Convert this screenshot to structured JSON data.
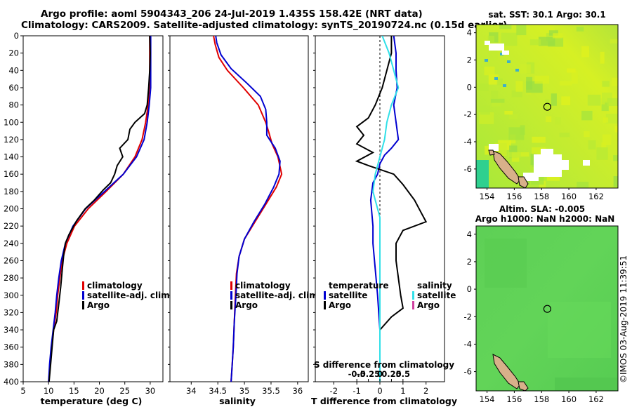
{
  "header": {
    "line1": "Argo profile: aoml 5904343_206 24-Jul-2019 1.435S 158.42E (NRT data)",
    "line2": "Climatology: CARS2009. Satellite-adjusted climatology: synTS_20190724.nc (0.15d earlier)"
  },
  "colors": {
    "climatology": "#e00000",
    "satellite": "#0000d0",
    "argo": "#000000",
    "satellite_salinity": "#30e0e8",
    "salinity_argo": "#d040a0"
  },
  "footer": {
    "credit": "©IMOS 03-Aug-2019 11:39:51"
  },
  "chart_data": [
    {
      "type": "line",
      "name": "temperature-profile",
      "xlabel": "temperature (deg C)",
      "xlim": [
        5,
        32.5
      ],
      "ylim": [
        400,
        0
      ],
      "xticks": [
        5,
        10,
        15,
        20,
        25,
        30
      ],
      "yticks": [
        0,
        20,
        40,
        60,
        80,
        100,
        120,
        140,
        160,
        180,
        200,
        220,
        240,
        260,
        280,
        300,
        320,
        340,
        360,
        380,
        400
      ],
      "legend": [
        "climatology",
        "satellite-adj. clim.",
        "Argo"
      ],
      "legend_position": "lower-right",
      "series": [
        {
          "name": "climatology",
          "color_key": "climatology",
          "points": [
            [
              29.9,
              0
            ],
            [
              29.9,
              20
            ],
            [
              29.9,
              40
            ],
            [
              29.8,
              60
            ],
            [
              29.6,
              80
            ],
            [
              29.1,
              100
            ],
            [
              28.4,
              120
            ],
            [
              27.0,
              140
            ],
            [
              24.7,
              160
            ],
            [
              21.3,
              180
            ],
            [
              17.8,
              200
            ],
            [
              15.1,
              220
            ],
            [
              13.6,
              240
            ],
            [
              12.7,
              260
            ],
            [
              12.2,
              280
            ],
            [
              11.8,
              300
            ],
            [
              11.5,
              320
            ],
            [
              11.0,
              340
            ],
            [
              10.6,
              360
            ],
            [
              10.3,
              380
            ],
            [
              10.0,
              400
            ]
          ]
        },
        {
          "name": "satellite-adj. clim.",
          "color_key": "satellite",
          "points": [
            [
              30.1,
              0
            ],
            [
              30.1,
              20
            ],
            [
              30.1,
              40
            ],
            [
              30.1,
              60
            ],
            [
              29.8,
              80
            ],
            [
              29.4,
              100
            ],
            [
              28.8,
              120
            ],
            [
              27.3,
              140
            ],
            [
              24.7,
              160
            ],
            [
              21.0,
              180
            ],
            [
              17.3,
              200
            ],
            [
              14.8,
              220
            ],
            [
              13.3,
              240
            ],
            [
              12.5,
              260
            ],
            [
              12.0,
              280
            ],
            [
              11.6,
              300
            ],
            [
              11.3,
              320
            ],
            [
              10.9,
              340
            ],
            [
              10.5,
              360
            ],
            [
              10.2,
              380
            ],
            [
              10.0,
              400
            ]
          ]
        },
        {
          "name": "Argo",
          "color_key": "argo",
          "points": [
            [
              29.9,
              0
            ],
            [
              30.0,
              20
            ],
            [
              29.9,
              40
            ],
            [
              29.7,
              60
            ],
            [
              29.4,
              80
            ],
            [
              28.9,
              90
            ],
            [
              27.0,
              100
            ],
            [
              26.0,
              108
            ],
            [
              25.6,
              120
            ],
            [
              24.0,
              130
            ],
            [
              24.6,
              140
            ],
            [
              23.5,
              150
            ],
            [
              23.0,
              160
            ],
            [
              22.2,
              170
            ],
            [
              20.8,
              178
            ],
            [
              19.0,
              190
            ],
            [
              17.2,
              200
            ],
            [
              15.5,
              214
            ],
            [
              14.0,
              230
            ],
            [
              13.3,
              240
            ],
            [
              13.0,
              252
            ],
            [
              12.7,
              270
            ],
            [
              12.4,
              290
            ],
            [
              12.0,
              310
            ],
            [
              11.6,
              330
            ],
            [
              11.0,
              340
            ],
            [
              10.7,
              360
            ],
            [
              10.4,
              380
            ],
            [
              10.1,
              400
            ]
          ]
        }
      ]
    },
    {
      "type": "line",
      "name": "salinity-profile",
      "xlabel": "salinity",
      "xlim": [
        33.6,
        36.2
      ],
      "ylim": [
        400,
        0
      ],
      "xticks": [
        34,
        34.5,
        35,
        35.5,
        36
      ],
      "legend": [
        "climatology",
        "satellite-adj. clim.",
        "Argo"
      ],
      "legend_position": "lower-right",
      "series": [
        {
          "name": "climatology",
          "color_key": "climatology",
          "points": [
            [
              34.42,
              0
            ],
            [
              34.45,
              10
            ],
            [
              34.52,
              25
            ],
            [
              34.68,
              40
            ],
            [
              34.98,
              60
            ],
            [
              35.26,
              80
            ],
            [
              35.4,
              100
            ],
            [
              35.45,
              110
            ],
            [
              35.52,
              125
            ],
            [
              35.63,
              140
            ],
            [
              35.7,
              160
            ],
            [
              35.6,
              175
            ],
            [
              35.4,
              195
            ],
            [
              35.2,
              215
            ],
            [
              35.0,
              235
            ],
            [
              34.9,
              255
            ],
            [
              34.85,
              275
            ],
            [
              34.83,
              300
            ],
            [
              34.81,
              330
            ],
            [
              34.79,
              360
            ],
            [
              34.77,
              380
            ],
            [
              34.75,
              400
            ]
          ]
        },
        {
          "name": "satellite-adj. clim.",
          "color_key": "satellite",
          "points": [
            [
              34.46,
              0
            ],
            [
              34.48,
              8
            ],
            [
              34.56,
              22
            ],
            [
              34.75,
              38
            ],
            [
              35.05,
              55
            ],
            [
              35.3,
              70
            ],
            [
              35.4,
              85
            ],
            [
              35.42,
              100
            ],
            [
              35.42,
              115
            ],
            [
              35.58,
              130
            ],
            [
              35.67,
              145
            ],
            [
              35.65,
              160
            ],
            [
              35.55,
              175
            ],
            [
              35.38,
              195
            ],
            [
              35.18,
              215
            ],
            [
              35.0,
              235
            ],
            [
              34.9,
              255
            ],
            [
              34.86,
              275
            ],
            [
              34.84,
              300
            ],
            [
              34.81,
              330
            ],
            [
              34.79,
              360
            ],
            [
              34.77,
              380
            ],
            [
              34.75,
              400
            ]
          ]
        }
      ]
    },
    {
      "type": "line",
      "name": "difference-profile",
      "xlabel": "T difference from climatology",
      "xlabel_top": "S difference from climatology",
      "xlim": [
        -2.8,
        2.8
      ],
      "ylim": [
        400,
        0
      ],
      "xticks": [
        -2,
        -1,
        0,
        1,
        2
      ],
      "xtick_labels": [
        "-2",
        "-1",
        "0",
        "1",
        "2"
      ],
      "xticks_top": [
        -1,
        -0.5,
        0,
        0.5,
        1
      ],
      "xtick_labels_top": [
        "-0.5",
        "-0.25",
        "0",
        "0.25",
        "0.5"
      ],
      "legend_left_title": "temperature",
      "legend_left": [
        "satellite",
        "Argo"
      ],
      "legend_right_title": "salinity",
      "legend_right": [
        "satellite",
        "Argo"
      ],
      "legend_position": "lower-center",
      "series": [
        {
          "name": "temperature satellite",
          "color_key": "satellite",
          "points": [
            [
              0.6,
              0
            ],
            [
              0.7,
              20
            ],
            [
              0.7,
              40
            ],
            [
              0.75,
              60
            ],
            [
              0.6,
              80
            ],
            [
              0.7,
              100
            ],
            [
              0.8,
              120
            ],
            [
              0.5,
              130
            ],
            [
              0.2,
              138
            ],
            [
              0.0,
              148
            ],
            [
              -0.1,
              160
            ],
            [
              -0.3,
              170
            ],
            [
              -0.4,
              190
            ],
            [
              -0.3,
              220
            ],
            [
              -0.3,
              240
            ],
            [
              -0.2,
              270
            ],
            [
              -0.1,
              300
            ],
            [
              0.0,
              340
            ],
            [
              0.0,
              400
            ]
          ]
        },
        {
          "name": "temperature Argo",
          "color_key": "argo",
          "points": [
            [
              0.5,
              0
            ],
            [
              0.5,
              20
            ],
            [
              0.3,
              40
            ],
            [
              0.1,
              60
            ],
            [
              -0.2,
              80
            ],
            [
              -0.5,
              95
            ],
            [
              -1.0,
              105
            ],
            [
              -0.7,
              115
            ],
            [
              -1.0,
              125
            ],
            [
              -0.3,
              135
            ],
            [
              -1.0,
              145
            ],
            [
              -0.5,
              150
            ],
            [
              0.6,
              160
            ],
            [
              1.0,
              172
            ],
            [
              1.5,
              190
            ],
            [
              1.8,
              205
            ],
            [
              2.0,
              215
            ],
            [
              1.0,
              225
            ],
            [
              0.7,
              240
            ],
            [
              0.7,
              260
            ],
            [
              0.8,
              280
            ],
            [
              0.9,
              300
            ],
            [
              1.0,
              315
            ],
            [
              0.5,
              325
            ],
            [
              0.0,
              340
            ],
            [
              0.0,
              400
            ]
          ]
        },
        {
          "name": "salinity satellite",
          "color_key": "satellite_salinity",
          "points": [
            [
              0.1,
              0
            ],
            [
              0.4,
              20
            ],
            [
              0.6,
              40
            ],
            [
              0.8,
              60
            ],
            [
              0.5,
              80
            ],
            [
              0.3,
              100
            ],
            [
              0.2,
              120
            ],
            [
              0.0,
              140
            ],
            [
              -0.2,
              160
            ],
            [
              -0.3,
              180
            ],
            [
              0.0,
              210
            ],
            [
              0.0,
              260
            ],
            [
              0.0,
              300
            ],
            [
              0.0,
              400
            ]
          ]
        }
      ]
    },
    {
      "type": "heatmap",
      "name": "sst-map",
      "title": "sat. SST: 30.1 Argo: 30.1",
      "xlim": [
        153.2,
        163.6
      ],
      "ylim": [
        -7.4,
        4.6
      ],
      "xticks": [
        154,
        156,
        158,
        160,
        162
      ],
      "yticks": [
        -6,
        -4,
        -2,
        0,
        2,
        4
      ],
      "float_position": [
        158.42,
        -1.435
      ]
    },
    {
      "type": "heatmap",
      "name": "sla-map",
      "title_line1": "Altim. SLA: -0.005",
      "title_line2": "Argo h1000: NaN h2000: NaN",
      "xlim": [
        153.2,
        163.6
      ],
      "ylim": [
        -7.4,
        4.6
      ],
      "xticks": [
        154,
        156,
        158,
        160,
        162
      ],
      "yticks": [
        -6,
        -4,
        -2,
        0,
        2,
        4
      ],
      "float_position": [
        158.42,
        -1.435
      ]
    }
  ]
}
